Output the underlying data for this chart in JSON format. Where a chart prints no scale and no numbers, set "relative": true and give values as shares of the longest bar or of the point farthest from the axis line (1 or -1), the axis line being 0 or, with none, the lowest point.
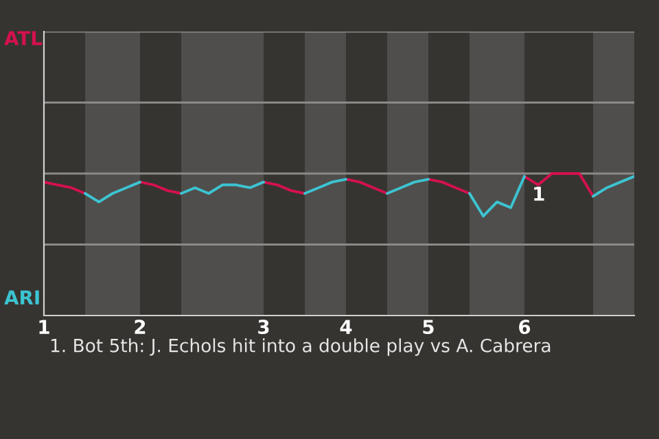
{
  "chart_data": {
    "type": "line",
    "relative": true,
    "categories": [
      "1",
      null,
      null,
      null,
      null,
      null,
      null,
      "2",
      null,
      null,
      null,
      null,
      null,
      null,
      null,
      null,
      "3",
      null,
      null,
      null,
      null,
      null,
      "4",
      null,
      null,
      null,
      null,
      null,
      "5",
      null,
      null,
      null,
      null,
      null,
      null,
      "6",
      null,
      null,
      null,
      null,
      null,
      null,
      null,
      null
    ],
    "marker": "none",
    "ref_lines": [
      {
        "axis": "y",
        "value": 0.5,
        "color": "#8c8a88"
      },
      {
        "axis": "y",
        "value": 1,
        "color": "#8c8a88"
      }
    ],
    "line_style": "solid",
    "series": [
      {
        "color": "#d4114e",
        "values": [
          0.94,
          0.92,
          0.9,
          0.86,
          null,
          null,
          null,
          0.94,
          0.92,
          0.88,
          0.86,
          null,
          null,
          null,
          null,
          null,
          0.94,
          0.92,
          0.88,
          0.86,
          null,
          null,
          0.96,
          0.94,
          0.9,
          0.86,
          null,
          null,
          0.96,
          0.94,
          0.9,
          0.86,
          null,
          null,
          null,
          0.98,
          0.92,
          1,
          1,
          1,
          0.84,
          null,
          null,
          null
        ]
      },
      {
        "color": "#3cc4d2",
        "values": [
          null,
          null,
          null,
          0.86,
          0.8,
          0.86,
          0.9,
          0.94,
          null,
          null,
          0.86,
          0.9,
          0.86,
          0.92,
          0.92,
          0.9,
          0.94,
          null,
          null,
          0.86,
          0.9,
          0.94,
          0.96,
          null,
          null,
          0.86,
          0.9,
          0.94,
          0.96,
          null,
          null,
          0.86,
          0.7,
          0.8,
          0.76,
          0.98,
          null,
          null,
          null,
          null,
          0.84,
          0.9,
          0.94,
          0.98
        ]
      }
    ],
    "annotations": [
      "ATL",
      "ARI",
      {
        "text": "1",
        "x": "6",
        "y": 0.98
      },
      "1. Bot 5th: J. Echols hit into a double play vs A. Cabrera"
    ]
  }
}
